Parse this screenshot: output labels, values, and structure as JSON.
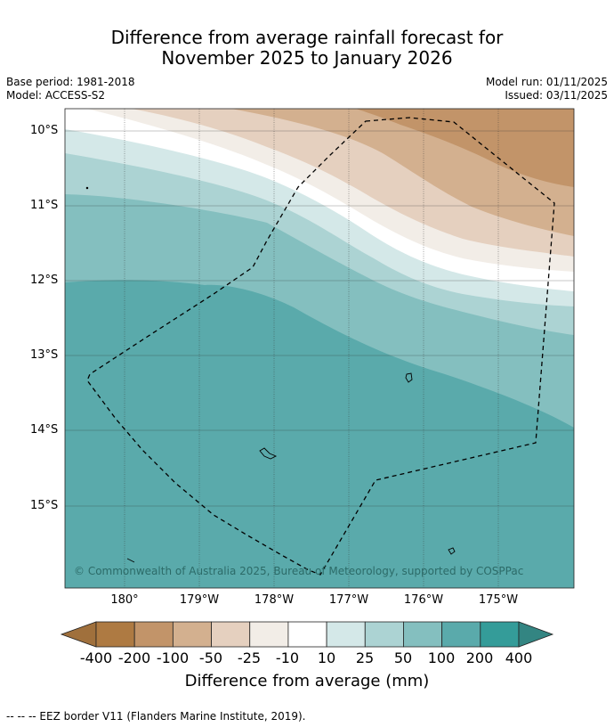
{
  "title": {
    "line1": "Difference from average rainfall forecast for",
    "line2": "November 2025 to January 2026"
  },
  "meta": {
    "base_period": "Base period: 1981-2018",
    "model": "Model: ACCESS-S2",
    "model_run": "Model run: 01/11/2025",
    "issued": "Issued: 03/11/2025"
  },
  "map": {
    "lat_labels": [
      "10°S",
      "11°S",
      "12°S",
      "13°S",
      "14°S",
      "15°S"
    ],
    "lon_labels": [
      "180°",
      "179°W",
      "178°W",
      "177°W",
      "176°W",
      "175°W"
    ],
    "copyright": "© Commonwealth of Australia 2025, Bureau of Meteorology, supported by COSPPac"
  },
  "colorbar": {
    "tick_labels": [
      "-400",
      "-200",
      "-100",
      "-50",
      "-25",
      "-10",
      "10",
      "25",
      "50",
      "100",
      "200",
      "400"
    ],
    "colors": [
      "#ae7a42",
      "#c29469",
      "#d3b08f",
      "#e5d0bf",
      "#f2ede7",
      "#ffffff",
      "#d4e8e8",
      "#acd3d3",
      "#84bfbf",
      "#5aaaab",
      "#349c99"
    ],
    "arrow_left_color": "#a0703c",
    "arrow_right_color": "#338582",
    "title": "Difference from average (mm)"
  },
  "legend_note": "--  --  -- EEZ border V11 (Flanders Marine Institute, 2019)."
}
